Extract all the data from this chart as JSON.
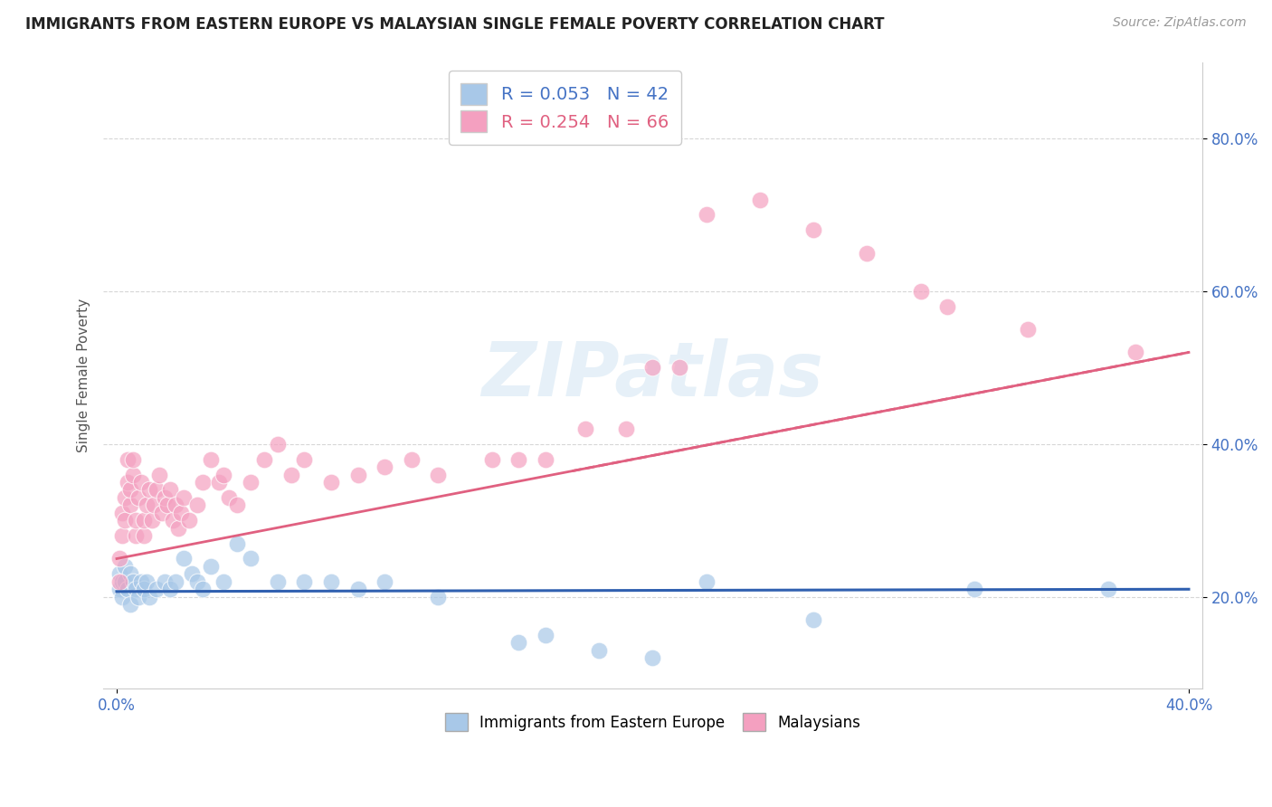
{
  "title": "IMMIGRANTS FROM EASTERN EUROPE VS MALAYSIAN SINGLE FEMALE POVERTY CORRELATION CHART",
  "source": "Source: ZipAtlas.com",
  "xlabel_label": "Immigrants from Eastern Europe",
  "ylabel_label": "Single Female Poverty",
  "xlim": [
    -0.005,
    0.405
  ],
  "ylim": [
    0.08,
    0.9
  ],
  "ytick_vals": [
    0.2,
    0.4,
    0.6,
    0.8
  ],
  "blue_R": 0.053,
  "blue_N": 42,
  "pink_R": 0.254,
  "pink_N": 66,
  "blue_color": "#a8c8e8",
  "pink_color": "#f4a0c0",
  "blue_line_color": "#3060b0",
  "pink_line_color": "#e06080",
  "watermark": "ZIPatlas",
  "blue_points_x": [
    0.001,
    0.001,
    0.002,
    0.002,
    0.003,
    0.003,
    0.004,
    0.005,
    0.005,
    0.006,
    0.007,
    0.008,
    0.009,
    0.01,
    0.011,
    0.012,
    0.015,
    0.018,
    0.02,
    0.022,
    0.025,
    0.028,
    0.03,
    0.032,
    0.035,
    0.04,
    0.045,
    0.05,
    0.06,
    0.07,
    0.08,
    0.09,
    0.1,
    0.12,
    0.15,
    0.16,
    0.18,
    0.2,
    0.22,
    0.26,
    0.32,
    0.37
  ],
  "blue_points_y": [
    0.21,
    0.23,
    0.2,
    0.22,
    0.22,
    0.24,
    0.21,
    0.23,
    0.19,
    0.22,
    0.21,
    0.2,
    0.22,
    0.21,
    0.22,
    0.2,
    0.21,
    0.22,
    0.21,
    0.22,
    0.25,
    0.23,
    0.22,
    0.21,
    0.24,
    0.22,
    0.27,
    0.25,
    0.22,
    0.22,
    0.22,
    0.21,
    0.22,
    0.2,
    0.14,
    0.15,
    0.13,
    0.12,
    0.22,
    0.17,
    0.21,
    0.21
  ],
  "pink_points_x": [
    0.001,
    0.001,
    0.002,
    0.002,
    0.003,
    0.003,
    0.004,
    0.004,
    0.005,
    0.005,
    0.006,
    0.006,
    0.007,
    0.007,
    0.008,
    0.009,
    0.01,
    0.01,
    0.011,
    0.012,
    0.013,
    0.014,
    0.015,
    0.016,
    0.017,
    0.018,
    0.019,
    0.02,
    0.021,
    0.022,
    0.023,
    0.024,
    0.025,
    0.027,
    0.03,
    0.032,
    0.035,
    0.038,
    0.04,
    0.042,
    0.045,
    0.05,
    0.055,
    0.06,
    0.065,
    0.07,
    0.08,
    0.09,
    0.1,
    0.11,
    0.12,
    0.14,
    0.15,
    0.16,
    0.175,
    0.19,
    0.2,
    0.21,
    0.22,
    0.24,
    0.26,
    0.28,
    0.3,
    0.31,
    0.34,
    0.38
  ],
  "pink_points_y": [
    0.22,
    0.25,
    0.28,
    0.31,
    0.3,
    0.33,
    0.35,
    0.38,
    0.32,
    0.34,
    0.36,
    0.38,
    0.28,
    0.3,
    0.33,
    0.35,
    0.28,
    0.3,
    0.32,
    0.34,
    0.3,
    0.32,
    0.34,
    0.36,
    0.31,
    0.33,
    0.32,
    0.34,
    0.3,
    0.32,
    0.29,
    0.31,
    0.33,
    0.3,
    0.32,
    0.35,
    0.38,
    0.35,
    0.36,
    0.33,
    0.32,
    0.35,
    0.38,
    0.4,
    0.36,
    0.38,
    0.35,
    0.36,
    0.37,
    0.38,
    0.36,
    0.38,
    0.38,
    0.38,
    0.42,
    0.42,
    0.5,
    0.5,
    0.7,
    0.72,
    0.68,
    0.65,
    0.6,
    0.58,
    0.55,
    0.52
  ],
  "blue_line_y_at_0": 0.207,
  "blue_line_y_at_40": 0.21,
  "pink_line_y_at_0": 0.25,
  "pink_line_y_at_40": 0.52
}
